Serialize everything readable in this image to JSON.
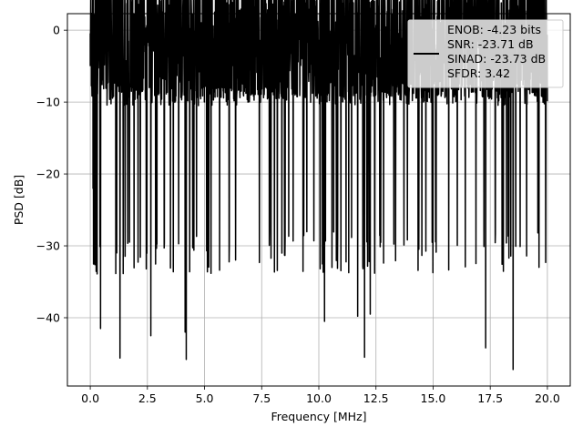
{
  "chart_data": {
    "type": "line",
    "title": "",
    "xlabel": "Frequency [MHz]",
    "ylabel": "PSD [dB]",
    "xlim": [
      -1.0,
      21.0
    ],
    "ylim": [
      -49.5,
      2.3
    ],
    "xticks": [
      0.0,
      2.5,
      5.0,
      7.5,
      10.0,
      12.5,
      15.0,
      17.5,
      20.0
    ],
    "xtick_labels": [
      "0.0",
      "2.5",
      "5.0",
      "7.5",
      "10.0",
      "12.5",
      "15.0",
      "17.5",
      "20.0"
    ],
    "yticks": [
      0,
      -10,
      -20,
      -30,
      -40
    ],
    "ytick_labels": [
      "0",
      "−10",
      "−20",
      "−30",
      "−40"
    ],
    "grid": true,
    "legend_position": "top-right",
    "legend_entries": [
      "ENOB: -4.23 bits",
      "SNR: -23.71 dB",
      "SINAD: -23.73 dB",
      "SFDR: 3.42"
    ],
    "series": [
      {
        "color": "#000000",
        "frequency_range": [
          0,
          20
        ],
        "peak": {
          "x": 0.05,
          "y": 0
        },
        "noise_band_top": -9,
        "noise_band_bottom": -28,
        "notable_dips": [
          {
            "x": 0.45,
            "y": -41.5
          },
          {
            "x": 1.3,
            "y": -45.6
          },
          {
            "x": 2.65,
            "y": -42.5
          },
          {
            "x": 4.15,
            "y": -42
          },
          {
            "x": 4.2,
            "y": -45.8
          },
          {
            "x": 10.25,
            "y": -40.5
          },
          {
            "x": 11.7,
            "y": -39.8
          },
          {
            "x": 12.0,
            "y": -45.5
          },
          {
            "x": 12.25,
            "y": -39.5
          },
          {
            "x": 17.3,
            "y": -44.2
          },
          {
            "x": 18.5,
            "y": -47.2
          }
        ]
      }
    ]
  }
}
